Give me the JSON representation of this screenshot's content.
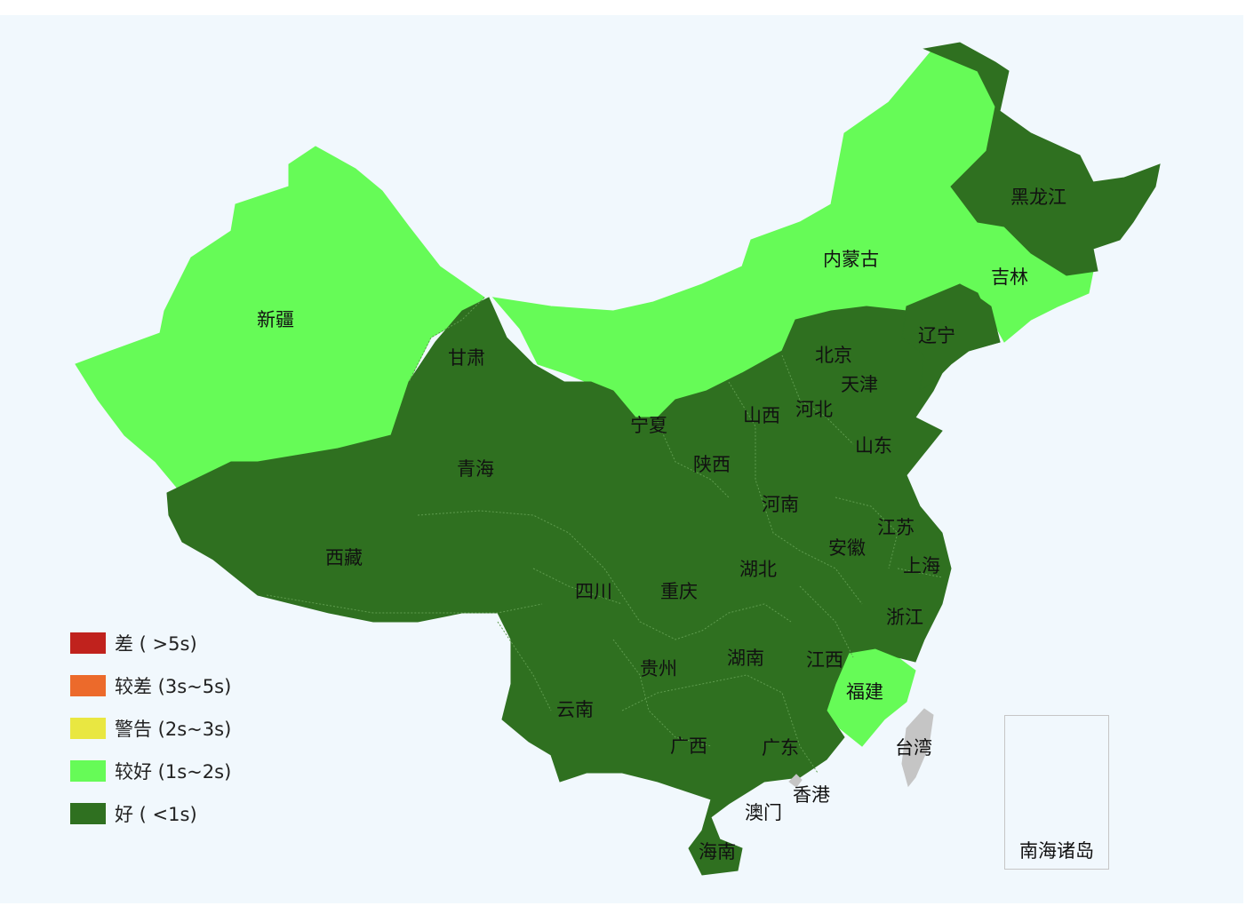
{
  "colors": {
    "poor": "#c0221d",
    "fair": "#ec6a2b",
    "warning": "#e9e741",
    "good": "#66fb57",
    "excellent": "#2f7020",
    "nodata": "#c5c5c5",
    "background": "#f1f8fd"
  },
  "legend": [
    {
      "label": "差 ( >5s)",
      "color": "#c0221d"
    },
    {
      "label": "较差 (3s~5s)",
      "color": "#ec6a2b"
    },
    {
      "label": "警告 (2s~3s)",
      "color": "#e9e741"
    },
    {
      "label": "较好 (1s~2s)",
      "color": "#66fb57"
    },
    {
      "label": "好 ( <1s)",
      "color": "#2f7020"
    }
  ],
  "provinces": [
    {
      "name": "黑龙江",
      "status": "好"
    },
    {
      "name": "吉林",
      "status": "较好"
    },
    {
      "name": "辽宁",
      "status": "好"
    },
    {
      "name": "内蒙古",
      "status": "较好"
    },
    {
      "name": "新疆",
      "status": "较好"
    },
    {
      "name": "甘肃",
      "status": "好"
    },
    {
      "name": "北京",
      "status": "好"
    },
    {
      "name": "天津",
      "status": "好"
    },
    {
      "name": "河北",
      "status": "好"
    },
    {
      "name": "山西",
      "status": "好"
    },
    {
      "name": "宁夏",
      "status": "好"
    },
    {
      "name": "山东",
      "status": "好"
    },
    {
      "name": "青海",
      "status": "好"
    },
    {
      "name": "陕西",
      "status": "好"
    },
    {
      "name": "河南",
      "status": "好"
    },
    {
      "name": "江苏",
      "status": "好"
    },
    {
      "name": "西藏",
      "status": "好"
    },
    {
      "name": "安徽",
      "status": "好"
    },
    {
      "name": "上海",
      "status": "好"
    },
    {
      "name": "湖北",
      "status": "好"
    },
    {
      "name": "四川",
      "status": "好"
    },
    {
      "name": "重庆",
      "status": "好"
    },
    {
      "name": "浙江",
      "status": "好"
    },
    {
      "name": "贵州",
      "status": "好"
    },
    {
      "name": "湖南",
      "status": "好"
    },
    {
      "name": "江西",
      "status": "好"
    },
    {
      "name": "福建",
      "status": "较好"
    },
    {
      "name": "云南",
      "status": "好"
    },
    {
      "name": "台湾",
      "status": "无数据"
    },
    {
      "name": "广西",
      "status": "好"
    },
    {
      "name": "广东",
      "status": "好"
    },
    {
      "name": "香港",
      "status": "无数据"
    },
    {
      "name": "澳门",
      "status": "好"
    },
    {
      "name": "海南",
      "status": "好"
    }
  ],
  "inset": {
    "label": "南海诸岛"
  }
}
